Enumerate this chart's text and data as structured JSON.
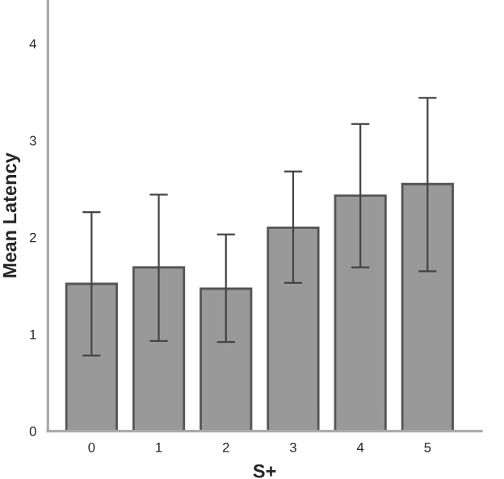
{
  "chart_data": {
    "type": "bar",
    "xlabel": "S+",
    "ylabel": "Mean Latency",
    "categories": [
      "0",
      "1",
      "2",
      "3",
      "4",
      "5"
    ],
    "values": [
      1.52,
      1.69,
      1.47,
      2.1,
      2.43,
      2.55
    ],
    "errors": [
      [
        0.78,
        2.26
      ],
      [
        0.93,
        2.44
      ],
      [
        0.92,
        2.03
      ],
      [
        1.53,
        2.68
      ],
      [
        1.69,
        3.17
      ],
      [
        1.65,
        3.44
      ]
    ],
    "color": "#999999",
    "ylim": [
      0,
      4.45
    ],
    "yticks": [
      0,
      1,
      2,
      3,
      4
    ],
    "grid": false
  }
}
